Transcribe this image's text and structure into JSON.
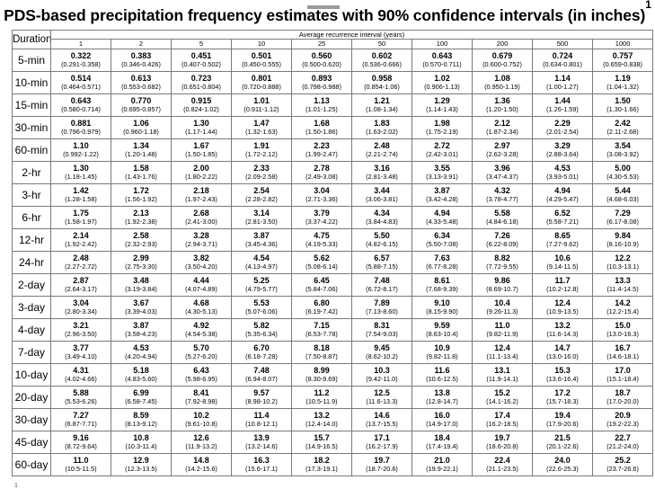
{
  "title": {
    "text": "PDS-based precipitation frequency estimates with 90% confidence intervals (in inches)",
    "footnote_marker": "1"
  },
  "table": {
    "corner_label": "Duration",
    "ari_label": "Average recurrence interval (years)",
    "intervals": [
      "1",
      "2",
      "5",
      "10",
      "25",
      "50",
      "100",
      "200",
      "500",
      "1000"
    ],
    "rows": [
      {
        "duration": "5-min",
        "cells": [
          {
            "est": "0.322",
            "ci": "(0.291-0.358)"
          },
          {
            "est": "0.383",
            "ci": "(0.346-0.426)"
          },
          {
            "est": "0.451",
            "ci": "(0.407-0.502)"
          },
          {
            "est": "0.501",
            "ci": "(0.450-0.555)"
          },
          {
            "est": "0.560",
            "ci": "(0.500-0.620)"
          },
          {
            "est": "0.602",
            "ci": "(0.536-0.666)"
          },
          {
            "est": "0.643",
            "ci": "(0.570-0.711)"
          },
          {
            "est": "0.679",
            "ci": "(0.600-0.752)"
          },
          {
            "est": "0.724",
            "ci": "(0.634-0.801)"
          },
          {
            "est": "0.757",
            "ci": "(0.659-0.838)"
          }
        ]
      },
      {
        "duration": "10-min",
        "cells": [
          {
            "est": "0.514",
            "ci": "(0.464-0.571)"
          },
          {
            "est": "0.613",
            "ci": "(0.553-0.682)"
          },
          {
            "est": "0.723",
            "ci": "(0.651-0.804)"
          },
          {
            "est": "0.801",
            "ci": "(0.720-0.888)"
          },
          {
            "est": "0.893",
            "ci": "(0.798-0.988)"
          },
          {
            "est": "0.958",
            "ci": "(0.854-1.06)"
          },
          {
            "est": "1.02",
            "ci": "(0.906-1.13)"
          },
          {
            "est": "1.08",
            "ci": "(0.950-1.19)"
          },
          {
            "est": "1.14",
            "ci": "(1.00-1.27)"
          },
          {
            "est": "1.19",
            "ci": "(1.04-1.32)"
          }
        ]
      },
      {
        "duration": "15-min",
        "cells": [
          {
            "est": "0.643",
            "ci": "(0.580-0.714)"
          },
          {
            "est": "0.770",
            "ci": "(0.695-0.857)"
          },
          {
            "est": "0.915",
            "ci": "(0.824-1.02)"
          },
          {
            "est": "1.01",
            "ci": "(0.911-1.12)"
          },
          {
            "est": "1.13",
            "ci": "(1.01-1.25)"
          },
          {
            "est": "1.21",
            "ci": "(1.08-1.34)"
          },
          {
            "est": "1.29",
            "ci": "(1.14-1.43)"
          },
          {
            "est": "1.36",
            "ci": "(1.20-1.50)"
          },
          {
            "est": "1.44",
            "ci": "(1.26-1.59)"
          },
          {
            "est": "1.50",
            "ci": "(1.30-1.66)"
          }
        ]
      },
      {
        "duration": "30-min",
        "cells": [
          {
            "est": "0.881",
            "ci": "(0.796-0.979)"
          },
          {
            "est": "1.06",
            "ci": "(0.960-1.18)"
          },
          {
            "est": "1.30",
            "ci": "(1.17-1.44)"
          },
          {
            "est": "1.47",
            "ci": "(1.32-1.63)"
          },
          {
            "est": "1.68",
            "ci": "(1.50-1.86)"
          },
          {
            "est": "1.83",
            "ci": "(1.63-2.02)"
          },
          {
            "est": "1.98",
            "ci": "(1.75-2.19)"
          },
          {
            "est": "2.12",
            "ci": "(1.87-2.34)"
          },
          {
            "est": "2.29",
            "ci": "(2.01-2.54)"
          },
          {
            "est": "2.42",
            "ci": "(2.11-2.68)"
          }
        ]
      },
      {
        "duration": "60-min",
        "cells": [
          {
            "est": "1.10",
            "ci": "(0.992-1.22)"
          },
          {
            "est": "1.34",
            "ci": "(1.20-1.48)"
          },
          {
            "est": "1.67",
            "ci": "(1.50-1.85)"
          },
          {
            "est": "1.91",
            "ci": "(1.72-2.12)"
          },
          {
            "est": "2.23",
            "ci": "(1.99-2.47)"
          },
          {
            "est": "2.48",
            "ci": "(2.21-2.74)"
          },
          {
            "est": "2.72",
            "ci": "(2.42-3.01)"
          },
          {
            "est": "2.97",
            "ci": "(2.62-3.28)"
          },
          {
            "est": "3.29",
            "ci": "(2.88-3.64)"
          },
          {
            "est": "3.54",
            "ci": "(3.08-3.92)"
          }
        ]
      },
      {
        "duration": "2-hr",
        "cells": [
          {
            "est": "1.30",
            "ci": "(1.18-1.45)"
          },
          {
            "est": "1.58",
            "ci": "(1.43-1.76)"
          },
          {
            "est": "2.00",
            "ci": "(1.80-2.22)"
          },
          {
            "est": "2.33",
            "ci": "(2.09-2.58)"
          },
          {
            "est": "2.78",
            "ci": "(2.49-3.08)"
          },
          {
            "est": "3.16",
            "ci": "(2.81-3.48)"
          },
          {
            "est": "3.55",
            "ci": "(3.13-3.91)"
          },
          {
            "est": "3.96",
            "ci": "(3.47-4.37)"
          },
          {
            "est": "4.53",
            "ci": "(3.93-5.01)"
          },
          {
            "est": "5.00",
            "ci": "(4.30-5.53)"
          }
        ]
      },
      {
        "duration": "3-hr",
        "cells": [
          {
            "est": "1.42",
            "ci": "(1.28-1.58)"
          },
          {
            "est": "1.72",
            "ci": "(1.56-1.92)"
          },
          {
            "est": "2.18",
            "ci": "(1.97-2.43)"
          },
          {
            "est": "2.54",
            "ci": "(2.28-2.82)"
          },
          {
            "est": "3.04",
            "ci": "(2.71-3.36)"
          },
          {
            "est": "3.44",
            "ci": "(3.06-3.81)"
          },
          {
            "est": "3.87",
            "ci": "(3.42-4.28)"
          },
          {
            "est": "4.32",
            "ci": "(3.78-4.77)"
          },
          {
            "est": "4.94",
            "ci": "(4.29-5.47)"
          },
          {
            "est": "5.44",
            "ci": "(4.68-6.03)"
          }
        ]
      },
      {
        "duration": "6-hr",
        "cells": [
          {
            "est": "1.75",
            "ci": "(1.58-1.97)"
          },
          {
            "est": "2.13",
            "ci": "(1.92-2.38)"
          },
          {
            "est": "2.68",
            "ci": "(2.41-3.00)"
          },
          {
            "est": "3.14",
            "ci": "(2.81-3.50)"
          },
          {
            "est": "3.79",
            "ci": "(3.37-4.22)"
          },
          {
            "est": "4.34",
            "ci": "(3.84-4.83)"
          },
          {
            "est": "4.94",
            "ci": "(4.33-5.48)"
          },
          {
            "est": "5.58",
            "ci": "(4.84-6.18)"
          },
          {
            "est": "6.52",
            "ci": "(5.58-7.21)"
          },
          {
            "est": "7.29",
            "ci": "(6.17-8.08)"
          }
        ]
      },
      {
        "duration": "12-hr",
        "cells": [
          {
            "est": "2.14",
            "ci": "(1.92-2.42)"
          },
          {
            "est": "2.58",
            "ci": "(2.32-2.93)"
          },
          {
            "est": "3.28",
            "ci": "(2.94-3.71)"
          },
          {
            "est": "3.87",
            "ci": "(3.45-4.36)"
          },
          {
            "est": "4.75",
            "ci": "(4.19-5.33)"
          },
          {
            "est": "5.50",
            "ci": "(4.82-6.15)"
          },
          {
            "est": "6.34",
            "ci": "(5.50-7.08)"
          },
          {
            "est": "7.26",
            "ci": "(6.22-8.09)"
          },
          {
            "est": "8.65",
            "ci": "(7.27-9.62)"
          },
          {
            "est": "9.84",
            "ci": "(8.16-10.9)"
          }
        ]
      },
      {
        "duration": "24-hr",
        "cells": [
          {
            "est": "2.48",
            "ci": "(2.27-2.72)"
          },
          {
            "est": "2.99",
            "ci": "(2.75-3.30)"
          },
          {
            "est": "3.82",
            "ci": "(3.50-4.20)"
          },
          {
            "est": "4.54",
            "ci": "(4.13-4.97)"
          },
          {
            "est": "5.62",
            "ci": "(5.08-6.14)"
          },
          {
            "est": "6.57",
            "ci": "(5.88-7.15)"
          },
          {
            "est": "7.63",
            "ci": "(6.77-8.28)"
          },
          {
            "est": "8.82",
            "ci": "(7.72-9.55)"
          },
          {
            "est": "10.6",
            "ci": "(9.14-11.5)"
          },
          {
            "est": "12.2",
            "ci": "(10.3-13.1)"
          }
        ]
      },
      {
        "duration": "2-day",
        "cells": [
          {
            "est": "2.87",
            "ci": "(2.64-3.17)"
          },
          {
            "est": "3.48",
            "ci": "(3.19-3.84)"
          },
          {
            "est": "4.44",
            "ci": "(4.07-4.89)"
          },
          {
            "est": "5.25",
            "ci": "(4.79-5.77)"
          },
          {
            "est": "6.45",
            "ci": "(5.84-7.06)"
          },
          {
            "est": "7.48",
            "ci": "(6.72-8.17)"
          },
          {
            "est": "8.61",
            "ci": "(7.68-9.39)"
          },
          {
            "est": "9.86",
            "ci": "(8.69-10.7)"
          },
          {
            "est": "11.7",
            "ci": "(10.2-12.8)"
          },
          {
            "est": "13.3",
            "ci": "(11.4-14.5)"
          }
        ]
      },
      {
        "duration": "3-day",
        "cells": [
          {
            "est": "3.04",
            "ci": "(2.80-3.34)"
          },
          {
            "est": "3.67",
            "ci": "(3.39-4.03)"
          },
          {
            "est": "4.68",
            "ci": "(4.30-5.13)"
          },
          {
            "est": "5.53",
            "ci": "(5.07-6.06)"
          },
          {
            "est": "6.80",
            "ci": "(6.19-7.42)"
          },
          {
            "est": "7.89",
            "ci": "(7.13-8.60)"
          },
          {
            "est": "9.10",
            "ci": "(8.15-9.90)"
          },
          {
            "est": "10.4",
            "ci": "(9.26-11.3)"
          },
          {
            "est": "12.4",
            "ci": "(10.9-13.5)"
          },
          {
            "est": "14.2",
            "ci": "(12.2-15.4)"
          }
        ]
      },
      {
        "duration": "4-day",
        "cells": [
          {
            "est": "3.21",
            "ci": "(2.96-3.50)"
          },
          {
            "est": "3.87",
            "ci": "(3.58-4.23)"
          },
          {
            "est": "4.92",
            "ci": "(4.54-5.38)"
          },
          {
            "est": "5.82",
            "ci": "(5.35-6.34)"
          },
          {
            "est": "7.15",
            "ci": "(6.53-7.78)"
          },
          {
            "est": "8.31",
            "ci": "(7.54-9.03)"
          },
          {
            "est": "9.59",
            "ci": "(8.63-10.4)"
          },
          {
            "est": "11.0",
            "ci": "(9.82-11.9)"
          },
          {
            "est": "13.2",
            "ci": "(11.6-14.3)"
          },
          {
            "est": "15.0",
            "ci": "(13.0-16.3)"
          }
        ]
      },
      {
        "duration": "7-day",
        "cells": [
          {
            "est": "3.77",
            "ci": "(3.49-4.10)"
          },
          {
            "est": "4.53",
            "ci": "(4.20-4.94)"
          },
          {
            "est": "5.70",
            "ci": "(5.27-6.20)"
          },
          {
            "est": "6.70",
            "ci": "(6.18-7.28)"
          },
          {
            "est": "8.18",
            "ci": "(7.50-8.87)"
          },
          {
            "est": "9.45",
            "ci": "(8.62-10.2)"
          },
          {
            "est": "10.9",
            "ci": "(9.82-11.8)"
          },
          {
            "est": "12.4",
            "ci": "(11.1-13.4)"
          },
          {
            "est": "14.7",
            "ci": "(13.0-16.0)"
          },
          {
            "est": "16.7",
            "ci": "(14.6-18.1)"
          }
        ]
      },
      {
        "duration": "10-day",
        "cells": [
          {
            "est": "4.31",
            "ci": "(4.02-4.66)"
          },
          {
            "est": "5.18",
            "ci": "(4.83-5.60)"
          },
          {
            "est": "6.43",
            "ci": "(5.98-6.95)"
          },
          {
            "est": "7.48",
            "ci": "(6.94-8.07)"
          },
          {
            "est": "8.99",
            "ci": "(8.30-9.69)"
          },
          {
            "est": "10.3",
            "ci": "(9.42-11.0)"
          },
          {
            "est": "11.6",
            "ci": "(10.6-12.5)"
          },
          {
            "est": "13.1",
            "ci": "(11.9-14.1)"
          },
          {
            "est": "15.3",
            "ci": "(13.6-16.4)"
          },
          {
            "est": "17.0",
            "ci": "(15.1-18.4)"
          }
        ]
      },
      {
        "duration": "20-day",
        "cells": [
          {
            "est": "5.88",
            "ci": "(5.53-6.26)"
          },
          {
            "est": "6.99",
            "ci": "(6.58-7.45)"
          },
          {
            "est": "8.41",
            "ci": "(7.92-8.98)"
          },
          {
            "est": "9.57",
            "ci": "(8.98-10.2)"
          },
          {
            "est": "11.2",
            "ci": "(10.5-11.9)"
          },
          {
            "est": "12.5",
            "ci": "(11.6-13.3)"
          },
          {
            "est": "13.8",
            "ci": "(12.8-14.7)"
          },
          {
            "est": "15.2",
            "ci": "(14.1-16.2)"
          },
          {
            "est": "17.2",
            "ci": "(15.7-18.3)"
          },
          {
            "est": "18.7",
            "ci": "(17.0-20.0)"
          }
        ]
      },
      {
        "duration": "30-day",
        "cells": [
          {
            "est": "7.27",
            "ci": "(6.87-7.71)"
          },
          {
            "est": "8.59",
            "ci": "(8.13-9.12)"
          },
          {
            "est": "10.2",
            "ci": "(9.61-10.8)"
          },
          {
            "est": "11.4",
            "ci": "(10.8-12.1)"
          },
          {
            "est": "13.2",
            "ci": "(12.4-14.0)"
          },
          {
            "est": "14.6",
            "ci": "(13.7-15.5)"
          },
          {
            "est": "16.0",
            "ci": "(14.9-17.0)"
          },
          {
            "est": "17.4",
            "ci": "(16.2-18.5)"
          },
          {
            "est": "19.4",
            "ci": "(17.9-20.6)"
          },
          {
            "est": "20.9",
            "ci": "(19.2-22.3)"
          }
        ]
      },
      {
        "duration": "45-day",
        "cells": [
          {
            "est": "9.16",
            "ci": "(8.72-9.64)"
          },
          {
            "est": "10.8",
            "ci": "(10.3-11.4)"
          },
          {
            "est": "12.6",
            "ci": "(11.9-13.2)"
          },
          {
            "est": "13.9",
            "ci": "(13.2-14.6)"
          },
          {
            "est": "15.7",
            "ci": "(14.9-16.5)"
          },
          {
            "est": "17.1",
            "ci": "(16.2-17.9)"
          },
          {
            "est": "18.4",
            "ci": "(17.4-19.4)"
          },
          {
            "est": "19.7",
            "ci": "(18.6-20.8)"
          },
          {
            "est": "21.5",
            "ci": "(20.1-22.6)"
          },
          {
            "est": "22.7",
            "ci": "(21.2-24.0)"
          }
        ]
      },
      {
        "duration": "60-day",
        "cells": [
          {
            "est": "11.0",
            "ci": "(10.5-11.5)"
          },
          {
            "est": "12.9",
            "ci": "(12.3-13.5)"
          },
          {
            "est": "14.8",
            "ci": "(14.2-15.6)"
          },
          {
            "est": "16.3",
            "ci": "(15.6-17.1)"
          },
          {
            "est": "18.2",
            "ci": "(17.3-19.1)"
          },
          {
            "est": "19.7",
            "ci": "(18.7-20.6)"
          },
          {
            "est": "21.0",
            "ci": "(19.9-22.1)"
          },
          {
            "est": "22.4",
            "ci": "(21.1-23.5)"
          },
          {
            "est": "24.0",
            "ci": "(22.6-25.3)"
          },
          {
            "est": "25.2",
            "ci": "(23.7-26.6)"
          }
        ]
      }
    ]
  },
  "bottom_mark": "1"
}
